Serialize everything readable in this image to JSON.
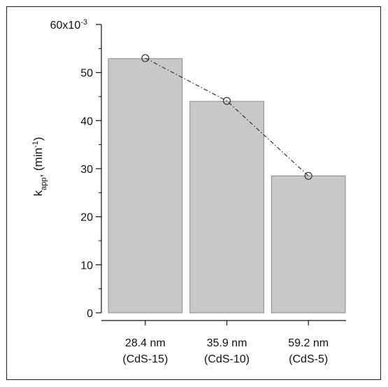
{
  "chart_data": {
    "type": "bar",
    "categories": [
      {
        "line1": "28.4 nm",
        "line2": "(CdS-15)"
      },
      {
        "line1": "35.9 nm",
        "line2": "(CdS-10)"
      },
      {
        "line1": "59.2 nm",
        "line2": "(CdS-5)"
      }
    ],
    "values": [
      0.0529,
      0.044,
      0.0285
    ],
    "overlay_line_values": [
      0.053,
      0.0441,
      0.0285
    ],
    "ylabel": {
      "main": "k",
      "sub": "app",
      "mid": ", (min",
      "sup": "-1",
      "end": ")"
    },
    "ylim": [
      0,
      0.06
    ],
    "yticks": [
      {
        "value": 0,
        "label": "0"
      },
      {
        "value": 0.01,
        "label": "10"
      },
      {
        "value": 0.02,
        "label": "20"
      },
      {
        "value": 0.03,
        "label": "30"
      },
      {
        "value": 0.04,
        "label": "40"
      },
      {
        "value": 0.05,
        "label": "50"
      },
      {
        "value": 0.06,
        "label": "60x10"
      }
    ],
    "ytick_top_exponent": "-3",
    "grid": false,
    "bar_color": "#c8c8c8",
    "bar_edge_color": "#888888",
    "line_color": "#333333"
  }
}
